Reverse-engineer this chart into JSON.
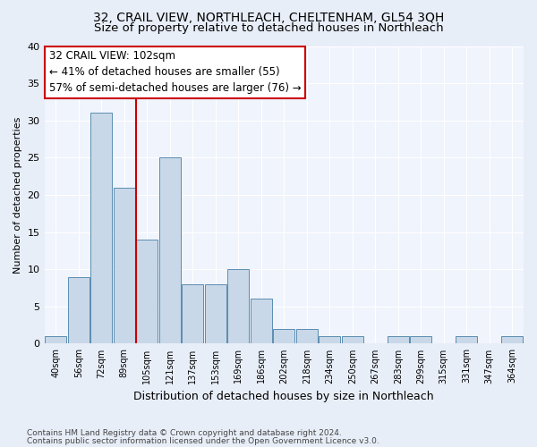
{
  "title": "32, CRAIL VIEW, NORTHLEACH, CHELTENHAM, GL54 3QH",
  "subtitle": "Size of property relative to detached houses in Northleach",
  "xlabel": "Distribution of detached houses by size in Northleach",
  "ylabel": "Number of detached properties",
  "categories": [
    "40sqm",
    "56sqm",
    "72sqm",
    "89sqm",
    "105sqm",
    "121sqm",
    "137sqm",
    "153sqm",
    "169sqm",
    "186sqm",
    "202sqm",
    "218sqm",
    "234sqm",
    "250sqm",
    "267sqm",
    "283sqm",
    "299sqm",
    "315sqm",
    "331sqm",
    "347sqm",
    "364sqm"
  ],
  "values": [
    1,
    9,
    31,
    21,
    14,
    25,
    8,
    8,
    10,
    6,
    2,
    2,
    1,
    1,
    0,
    1,
    1,
    0,
    1,
    0,
    1
  ],
  "bar_color": "#c8d8e8",
  "bar_edge_color": "#5b8db0",
  "vline_x": 3.5,
  "vline_color": "#cc0000",
  "annotation_line1": "32 CRAIL VIEW: 102sqm",
  "annotation_line2": "← 41% of detached houses are smaller (55)",
  "annotation_line3": "57% of semi-detached houses are larger (76) →",
  "annotation_box_color": "#cc0000",
  "ylim": [
    0,
    40
  ],
  "yticks": [
    0,
    5,
    10,
    15,
    20,
    25,
    30,
    35,
    40
  ],
  "footer1": "Contains HM Land Registry data © Crown copyright and database right 2024.",
  "footer2": "Contains public sector information licensed under the Open Government Licence v3.0.",
  "bg_color": "#e8eef8",
  "plot_bg_color": "#f0f4fc",
  "grid_color": "#ffffff",
  "title_fontsize": 10,
  "subtitle_fontsize": 9.5,
  "annotation_fontsize": 8.5,
  "ylabel_fontsize": 8,
  "xlabel_fontsize": 9
}
